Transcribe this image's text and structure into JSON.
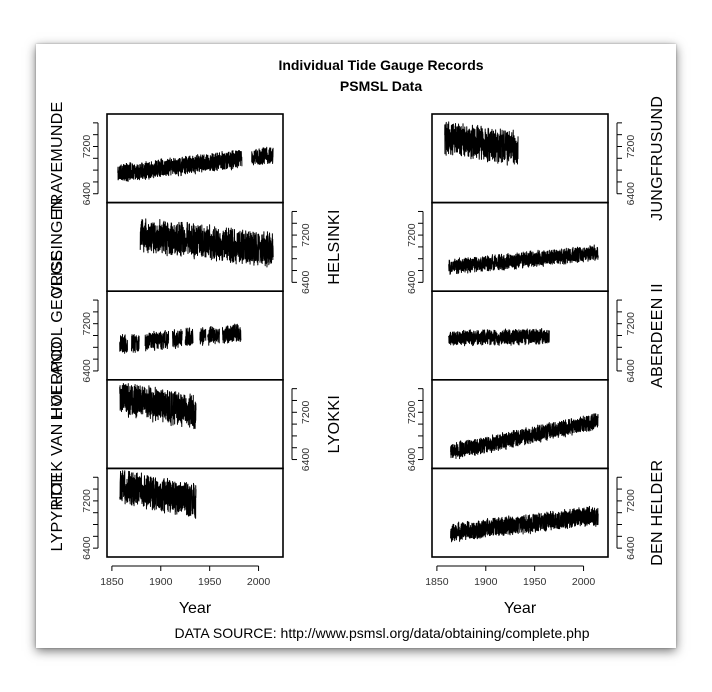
{
  "chart_data": {
    "type": "line",
    "title": "Individual Tide Gauge Records",
    "subtitle": "PSMSL Data",
    "xlabel": "Year",
    "source_text": "DATA SOURCE: http://www.psmsl.org/data/obtaining/complete.php",
    "xlim": [
      1845,
      2025
    ],
    "ylim": [
      6250,
      7750
    ],
    "x_ticks": [
      1850,
      1900,
      1950,
      2000
    ],
    "y_ticks": [
      6400,
      7200
    ],
    "columns": [
      {
        "panels": [
          {
            "name": "TRAVEMUNDE",
            "axis_side": "left",
            "segments": [
              [
                1856,
                1983
              ],
              [
                1993,
                2015
              ]
            ],
            "level_start": 6750,
            "level_end": 7050,
            "noise": 140,
            "seed": 11
          },
          {
            "name": "HELSINKI",
            "axis_side": "right",
            "segments": [
              [
                1879,
                2015
              ]
            ],
            "level_start": 7250,
            "level_end": 6950,
            "noise": 260,
            "seed": 23
          },
          {
            "name": "LIVERPOOL GEORGE",
            "axis_side": "left",
            "segments": [
              [
                1858,
                1866
              ],
              [
                1870,
                1878
              ],
              [
                1884,
                1908
              ],
              [
                1912,
                1922
              ],
              [
                1925,
                1933
              ],
              [
                1940,
                1946
              ],
              [
                1948,
                1960
              ],
              [
                1963,
                1982
              ]
            ],
            "level_start": 6850,
            "level_end": 7100,
            "noise": 140,
            "seed": 37
          },
          {
            "name": "LYOKKI",
            "axis_side": "right",
            "segments": [
              [
                1858,
                1936
              ]
            ],
            "level_start": 7450,
            "level_end": 6950,
            "noise": 260,
            "seed": 41
          },
          {
            "name": "LYPYRTTI",
            "axis_side": "left",
            "segments": [
              [
                1858,
                1936
              ]
            ],
            "level_start": 7450,
            "level_end": 6950,
            "noise": 260,
            "seed": 53
          }
        ]
      },
      {
        "panels": [
          {
            "name": "JUNGFRUSUND",
            "axis_side": "right",
            "segments": [
              [
                1858,
                1933
              ]
            ],
            "level_start": 7350,
            "level_end": 6950,
            "noise": 260,
            "seed": 61
          },
          {
            "name": "VLISSINGEN",
            "axis_side": "left",
            "segments": [
              [
                1862,
                2015
              ]
            ],
            "level_start": 6650,
            "level_end": 6900,
            "noise": 120,
            "seed": 71
          },
          {
            "name": "ABERDEEN II",
            "axis_side": "right",
            "segments": [
              [
                1862,
                1965
              ]
            ],
            "level_start": 6950,
            "level_end": 7000,
            "noise": 120,
            "seed": 83
          },
          {
            "name": "HOEK VAN HOLLAND",
            "axis_side": "left",
            "segments": [
              [
                1864,
                2015
              ]
            ],
            "level_start": 6500,
            "level_end": 7050,
            "noise": 130,
            "seed": 97
          },
          {
            "name": "DEN HELDER",
            "axis_side": "right",
            "segments": [
              [
                1864,
                2015
              ]
            ],
            "level_start": 6650,
            "level_end": 6950,
            "noise": 150,
            "seed": 101
          }
        ]
      }
    ]
  }
}
